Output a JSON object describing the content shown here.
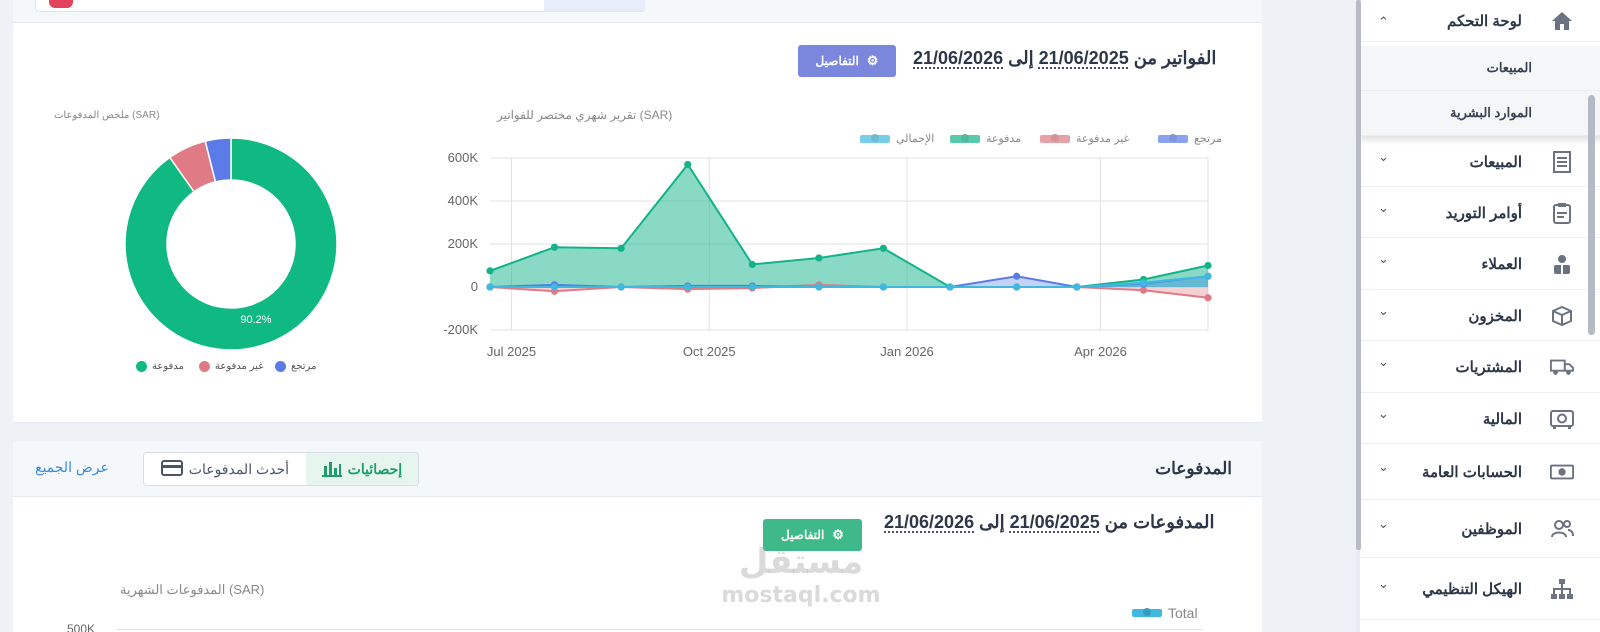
{
  "invoices": {
    "title_prefix": "الفواتير من",
    "date_from": "21/06/2025",
    "to_word": "إلى",
    "date_to": "21/06/2026",
    "details_label": "التفاصيل",
    "line_caption": "(SAR) تقرير شهري مختصر للفواتير",
    "donut_caption": "(SAR) ملخص المدفوعات"
  },
  "payments": {
    "header_title": "المدفوعات",
    "tabs": [
      {
        "label": "إحصائيات",
        "active": true
      },
      {
        "label": "أحدث المدفوعات",
        "active": false
      }
    ],
    "view_all": "عرض الجميع",
    "title_prefix": "المدفوعات من",
    "date_from": "21/06/2025",
    "to_word": "إلى",
    "date_to": "21/06/2026",
    "details_label": "التفاصيل",
    "chart_caption": "(SAR) المدفوعات الشهرية",
    "legend_total": "Total",
    "y_top_label": "500K"
  },
  "watermark": {
    "big": "مستقل",
    "small": "mostaql.com"
  },
  "sidebar": {
    "items": [
      {
        "label": "لوحة التحكم",
        "icon": "home-icon",
        "expanded": true
      },
      {
        "label": "المبيعات",
        "icon": "receipt-icon"
      },
      {
        "label": "أوامر التوريد",
        "icon": "clipboard-icon"
      },
      {
        "label": "العملاء",
        "icon": "customer-icon"
      },
      {
        "label": "المخزون",
        "icon": "box-icon"
      },
      {
        "label": "المشتريات",
        "icon": "truck-icon"
      },
      {
        "label": "المالية",
        "icon": "safe-icon"
      },
      {
        "label": "الحسابات العامة",
        "icon": "money-icon"
      },
      {
        "label": "الموظفين",
        "icon": "users-icon"
      },
      {
        "label": "الهيكل التنظيمي",
        "icon": "org-chart-icon"
      }
    ],
    "sub_items": [
      {
        "label": "المبيعات"
      },
      {
        "label": "الموارد البشرية"
      }
    ]
  },
  "chart_data": [
    {
      "type": "area",
      "title": "(SAR) تقرير شهري مختصر للفواتير",
      "x": [
        "2025-06-21",
        "2025-07-21",
        "2025-08-21",
        "2025-09-21",
        "2025-10-21",
        "2025-11-21",
        "2025-12-21",
        "2026-01-21",
        "2026-02-21",
        "2026-03-21",
        "2026-04-21",
        "2026-05-21"
      ],
      "x_ticks": [
        "Jul 2025",
        "Oct 2025",
        "Jan 2026",
        "Apr 2026"
      ],
      "y_ticks": [
        "600K",
        "400K",
        "200K",
        "0",
        "-200K"
      ],
      "ylim": [
        -200000,
        600000
      ],
      "legend_position": "top-right",
      "series": [
        {
          "name": "مرتجع",
          "color": "#5b7be8",
          "values": [
            0,
            10000,
            0,
            5000,
            5000,
            0,
            0,
            0,
            50000,
            0,
            15000,
            50000
          ]
        },
        {
          "name": "غير مدفوعة",
          "color": "#e07a84",
          "values": [
            0,
            -20000,
            0,
            -10000,
            -5000,
            10000,
            0,
            0,
            0,
            0,
            -15000,
            -50000
          ]
        },
        {
          "name": "مدفوعة",
          "color": "#13b38a",
          "values": [
            75000,
            185000,
            180000,
            570000,
            105000,
            135000,
            180000,
            0,
            0,
            0,
            35000,
            100000
          ]
        },
        {
          "name": "الإجمالي",
          "color": "#40b9e0",
          "values": [
            0,
            0,
            0,
            0,
            0,
            0,
            0,
            0,
            0,
            0,
            20000,
            50000
          ]
        }
      ],
      "grid": true
    },
    {
      "type": "pie",
      "title": "(SAR) ملخص المدفوعات",
      "donut": true,
      "categories": [
        "مدفوعة",
        "غير مدفوعة",
        "مرتجع"
      ],
      "values": [
        90.2,
        5.9,
        3.9
      ],
      "colors": [
        "#0fb981",
        "#e07a84",
        "#5b7be8"
      ],
      "visible_label": "90.2%",
      "legend_position": "bottom"
    }
  ]
}
